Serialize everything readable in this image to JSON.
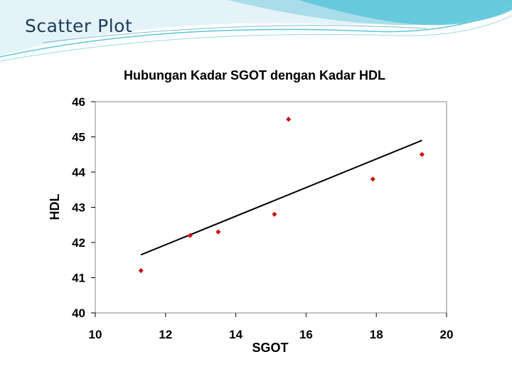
{
  "slide": {
    "title": "Scatter Plot",
    "accent_colors": [
      "#5bc6d9",
      "#a9dde9",
      "#2f8fb7"
    ]
  },
  "chart_data": {
    "type": "scatter",
    "title": "Hubungan Kadar SGOT dengan Kadar HDL",
    "xlabel": "SGOT",
    "ylabel": "HDL",
    "xlim": [
      10,
      20
    ],
    "ylim": [
      40,
      46
    ],
    "xticks": [
      "10",
      "12",
      "14",
      "16",
      "18",
      "20"
    ],
    "yticks": [
      "40",
      "41",
      "42",
      "43",
      "44",
      "45",
      "46"
    ],
    "grid": false,
    "marker_color": "#cc1111",
    "line_color": "#000000",
    "series": [
      {
        "points": [
          {
            "x": 11.3,
            "y": 41.2
          },
          {
            "x": 12.7,
            "y": 42.2
          },
          {
            "x": 13.5,
            "y": 42.3
          },
          {
            "x": 15.1,
            "y": 42.8
          },
          {
            "x": 15.5,
            "y": 45.5
          },
          {
            "x": 17.9,
            "y": 43.8
          },
          {
            "x": 19.3,
            "y": 44.5
          }
        ]
      }
    ],
    "trendline": {
      "x": [
        11.3,
        19.3
      ],
      "y": [
        41.65,
        44.9
      ]
    }
  }
}
